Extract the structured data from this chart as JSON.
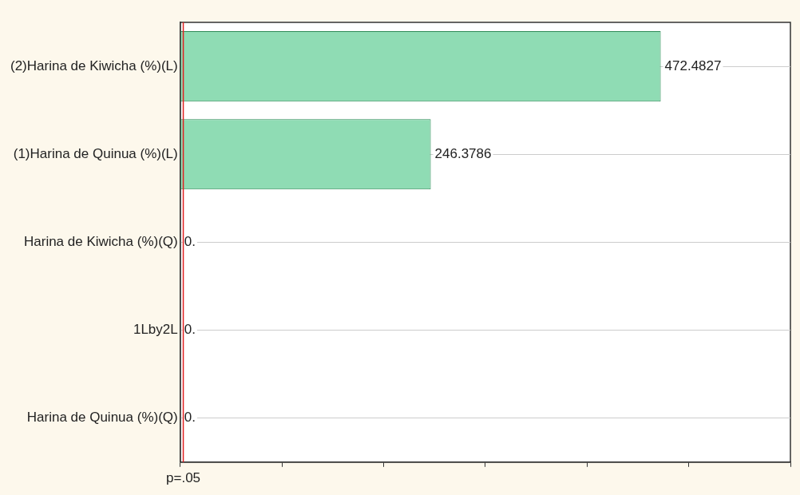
{
  "chart_data": {
    "type": "bar",
    "orientation": "horizontal",
    "categories": [
      "(2)Harina de Kiwicha (%)(L)",
      "(1)Harina de Quinua (%)(L)",
      "Harina de Kiwicha (%)(Q)",
      "1Lby2L",
      "Harina de Quinua (%)(Q)"
    ],
    "values": [
      472.4827,
      246.3786,
      0,
      0,
      0
    ],
    "value_labels": [
      "472.4827",
      "246.3786",
      "0.",
      "0.",
      "0."
    ],
    "color": "#8fdcb4",
    "ref_lines": [
      {
        "axis": "x",
        "value": 3,
        "label": "p=.05",
        "color": "#e02020"
      }
    ],
    "grid": "y"
  }
}
